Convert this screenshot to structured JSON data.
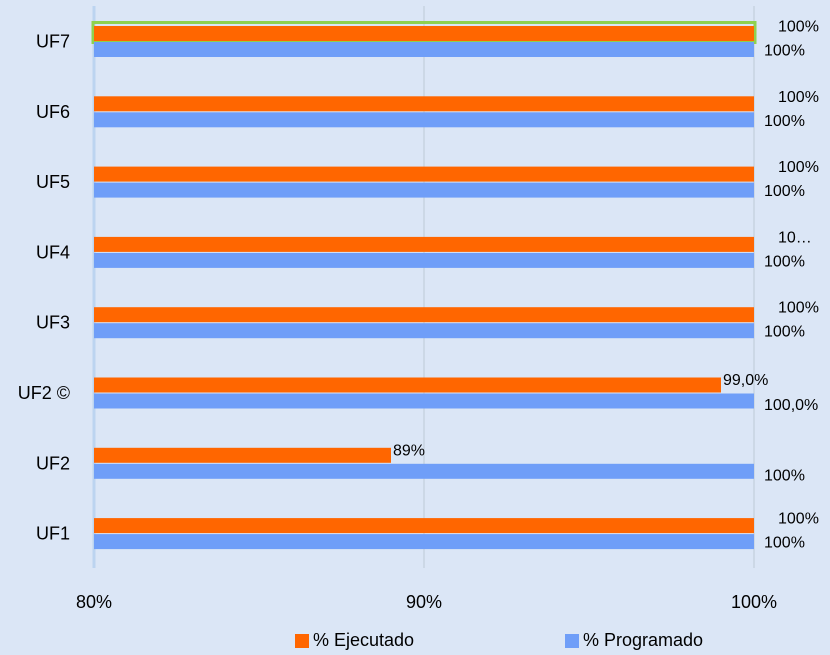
{
  "colors": {
    "background": "#dbe6f6",
    "ejecutado": "#ff6600",
    "programado": "#6f9ef8",
    "grid": "#c8d3e0",
    "highlight": "#8fd14f"
  },
  "chart_data": {
    "type": "bar",
    "orientation": "horizontal",
    "categories": [
      "UF7",
      "UF6",
      "UF5",
      "UF4",
      "UF3",
      "UF2 ©",
      "UF2",
      "UF1"
    ],
    "series": [
      {
        "name": "% Ejecutado",
        "values": [
          100,
          100,
          100,
          100,
          100,
          99.0,
          89,
          100
        ],
        "labels": [
          "100%",
          "100%",
          "100%",
          "10…",
          "100%",
          "99,0%",
          "89%",
          "100%"
        ]
      },
      {
        "name": "% Programado",
        "values": [
          100,
          100,
          100,
          100,
          100,
          100.0,
          100,
          100
        ],
        "labels": [
          "100%",
          "100%",
          "100%",
          "100%",
          "100%",
          "100,0%",
          "100%",
          "100%"
        ]
      }
    ],
    "xlim": [
      80,
      100
    ],
    "x_ticks": [
      "80%",
      "90%",
      "100%"
    ],
    "grid": true,
    "legend_position": "bottom",
    "highlighted_category": "UF7"
  }
}
